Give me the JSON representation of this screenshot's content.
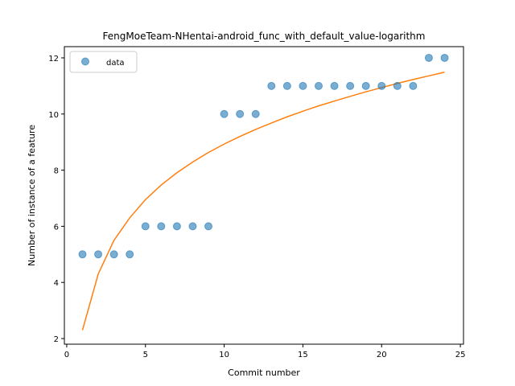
{
  "chart_data": {
    "type": "scatter",
    "title": "FengMoeTeam-NHentai-android_func_with_default_value-logarithm",
    "xlabel": "Commit number",
    "ylabel": "Number of instance of a feature",
    "xlim": [
      -0.15,
      25.2
    ],
    "ylim": [
      1.8,
      12.4
    ],
    "xticks": [
      0,
      5,
      10,
      15,
      20,
      25
    ],
    "yticks": [
      2,
      4,
      6,
      8,
      10,
      12
    ],
    "grid": false,
    "legend": {
      "placement": "upper-left",
      "entries": [
        "data"
      ]
    },
    "series": [
      {
        "name": "data",
        "kind": "scatter",
        "color": "#1f77b4",
        "x": [
          1,
          2,
          3,
          4,
          5,
          6,
          7,
          8,
          9,
          10,
          11,
          12,
          13,
          14,
          15,
          16,
          17,
          18,
          19,
          20,
          21,
          22,
          23,
          24
        ],
        "y": [
          5,
          5,
          5,
          5,
          6,
          6,
          6,
          6,
          6,
          10,
          10,
          10,
          11,
          11,
          11,
          11,
          11,
          11,
          11,
          11,
          11,
          11,
          12,
          12
        ]
      },
      {
        "kind": "line",
        "color": "#ff7f0e",
        "x": [
          1,
          2,
          3,
          4,
          5,
          6,
          7,
          8,
          9,
          10,
          11,
          12,
          13,
          14,
          15,
          16,
          17,
          18,
          19,
          20,
          21,
          22,
          23,
          24
        ],
        "y": [
          2.3,
          4.3,
          5.5,
          6.3,
          6.95,
          7.47,
          7.91,
          8.29,
          8.63,
          8.93,
          9.2,
          9.45,
          9.68,
          9.9,
          10.1,
          10.29,
          10.46,
          10.63,
          10.79,
          10.94,
          11.09,
          11.23,
          11.36,
          11.49
        ]
      }
    ]
  }
}
